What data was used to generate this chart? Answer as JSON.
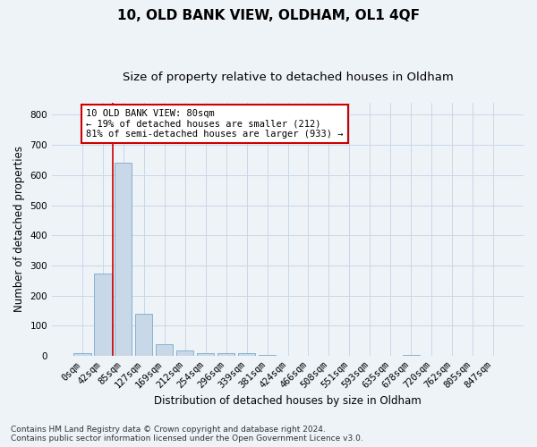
{
  "title": "10, OLD BANK VIEW, OLDHAM, OL1 4QF",
  "subtitle": "Size of property relative to detached houses in Oldham",
  "xlabel": "Distribution of detached houses by size in Oldham",
  "ylabel": "Number of detached properties",
  "footer_line1": "Contains HM Land Registry data © Crown copyright and database right 2024.",
  "footer_line2": "Contains public sector information licensed under the Open Government Licence v3.0.",
  "bin_labels": [
    "0sqm",
    "42sqm",
    "85sqm",
    "127sqm",
    "169sqm",
    "212sqm",
    "254sqm",
    "296sqm",
    "339sqm",
    "381sqm",
    "424sqm",
    "466sqm",
    "508sqm",
    "551sqm",
    "593sqm",
    "635sqm",
    "678sqm",
    "720sqm",
    "762sqm",
    "805sqm",
    "847sqm"
  ],
  "bar_values": [
    8,
    272,
    640,
    140,
    38,
    18,
    10,
    8,
    8,
    3,
    0,
    0,
    0,
    0,
    0,
    0,
    3,
    0,
    0,
    0,
    0
  ],
  "bar_color": "#c8d8e8",
  "bar_edge_color": "#7aaac8",
  "ylim": [
    0,
    840
  ],
  "yticks": [
    0,
    100,
    200,
    300,
    400,
    500,
    600,
    700,
    800
  ],
  "grid_color": "#c8d8e8",
  "bg_color": "#eef3f8",
  "property_line_color": "#cc0000",
  "annotation_text": "10 OLD BANK VIEW: 80sqm\n← 19% of detached houses are smaller (212)\n81% of semi-detached houses are larger (933) →",
  "annotation_box_color": "#ffffff",
  "annotation_box_edge": "#cc0000",
  "title_fontsize": 11,
  "subtitle_fontsize": 9.5,
  "label_fontsize": 8.5,
  "tick_fontsize": 7.5,
  "footer_fontsize": 6.5,
  "annotation_fontsize": 7.5
}
